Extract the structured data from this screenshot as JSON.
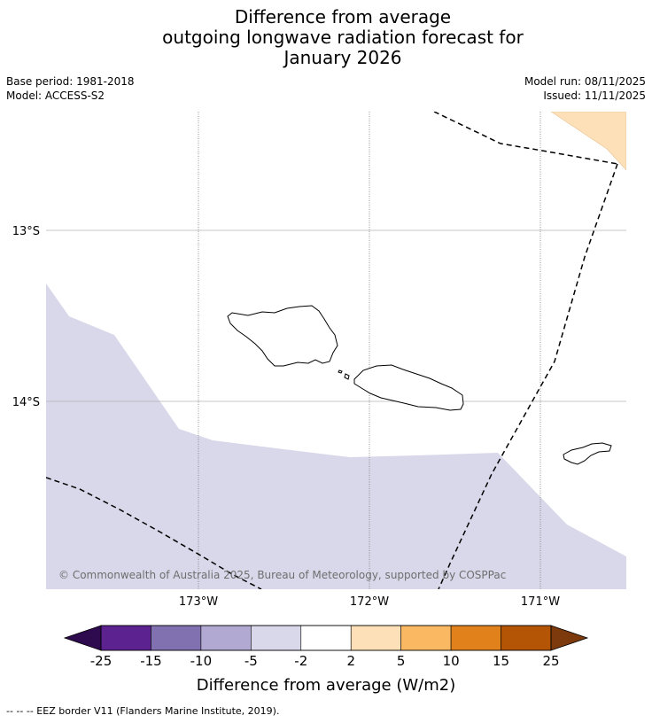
{
  "title": {
    "line1": "Difference from average",
    "line2": "outgoing longwave radiation forecast for",
    "line3": "January 2026"
  },
  "meta": {
    "base_period": "Base period: 1981-2018",
    "model": "Model: ACCESS-S2",
    "model_run": "Model run: 08/11/2025",
    "issued": "Issued: 11/11/2025"
  },
  "map": {
    "lat_labels": [
      "13°S",
      "14°S"
    ],
    "lon_labels": [
      "173°W",
      "172°W",
      "171°W"
    ],
    "copyright": "© Commonwealth of Australia 2025, Bureau of Meteorology, supported by COSPPac",
    "anomaly_fill_color": "#d8d8ea",
    "positive_fill_color": "#fde0b7"
  },
  "colorbar": {
    "label": "Difference from average (W/m2)",
    "ticks": [
      "-25",
      "-15",
      "-10",
      "-5",
      "-2",
      "2",
      "5",
      "10",
      "15",
      "25"
    ],
    "min_color": "#2e0b4e",
    "max_color": "#7d3a0c",
    "colors": [
      "#5c2390",
      "#8171b0",
      "#b1a9d1",
      "#d8d8ea",
      "#ffffff",
      "#fde0b7",
      "#fbb862",
      "#e0811c",
      "#b45506"
    ]
  },
  "footer": {
    "text": "--  --  -- EEZ border V11 (Flanders Marine Institute, 2019)."
  }
}
